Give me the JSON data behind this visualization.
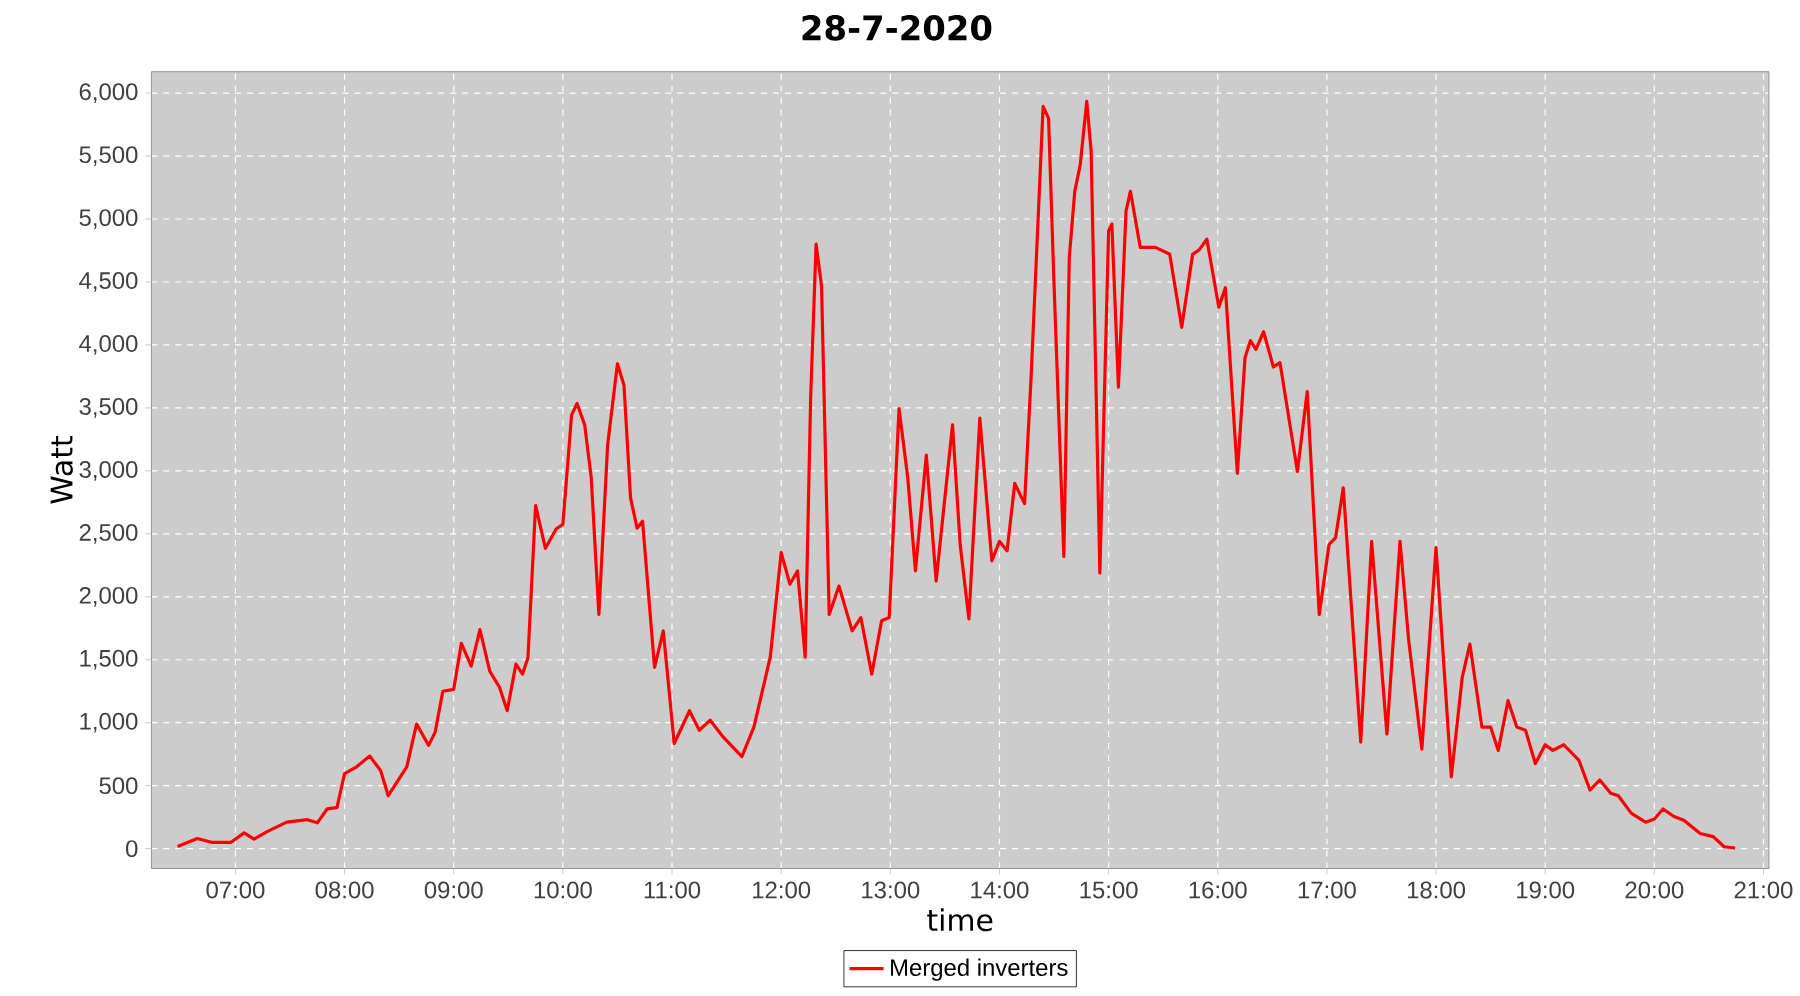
{
  "chart_data": {
    "type": "line",
    "title": "28-7-2020",
    "xlabel": "time",
    "ylabel": "Watt",
    "xlim": [
      6.23,
      21.05
    ],
    "ylim": [
      -158,
      6170
    ],
    "xticks": [
      {
        "value": 7,
        "label": "07:00"
      },
      {
        "value": 8,
        "label": "08:00"
      },
      {
        "value": 9,
        "label": "09:00"
      },
      {
        "value": 10,
        "label": "10:00"
      },
      {
        "value": 11,
        "label": "11:00"
      },
      {
        "value": 12,
        "label": "12:00"
      },
      {
        "value": 13,
        "label": "13:00"
      },
      {
        "value": 14,
        "label": "14:00"
      },
      {
        "value": 15,
        "label": "15:00"
      },
      {
        "value": 16,
        "label": "16:00"
      },
      {
        "value": 17,
        "label": "17:00"
      },
      {
        "value": 18,
        "label": "18:00"
      },
      {
        "value": 19,
        "label": "19:00"
      },
      {
        "value": 20,
        "label": "20:00"
      },
      {
        "value": 21,
        "label": "21:00"
      }
    ],
    "yticks": [
      0,
      500,
      {
        "value": 1000,
        "label": "1,000"
      },
      {
        "value": 1500,
        "label": "1,500"
      },
      {
        "value": 2000,
        "label": "2,000"
      },
      {
        "value": 2500,
        "label": "2,500"
      },
      {
        "value": 3000,
        "label": "3,000"
      },
      {
        "value": 3500,
        "label": "3,500"
      },
      {
        "value": 4000,
        "label": "4,000"
      },
      {
        "value": 4500,
        "label": "4,500"
      },
      {
        "value": 5000,
        "label": "5,000"
      },
      {
        "value": 5500,
        "label": "5,500"
      },
      {
        "value": 6000,
        "label": "6,000"
      }
    ],
    "grid": true,
    "legend": "bottom",
    "series": [
      {
        "name": "Merged inverters",
        "color": "#ff0000",
        "x": [
          6.47,
          6.65,
          6.78,
          6.96,
          7.08,
          7.17,
          7.29,
          7.47,
          7.66,
          7.75,
          7.84,
          7.93,
          8.0,
          8.11,
          8.23,
          8.33,
          8.4,
          8.57,
          8.66,
          8.77,
          8.83,
          8.9,
          9.0,
          9.07,
          9.16,
          9.24,
          9.33,
          9.42,
          9.49,
          9.57,
          9.63,
          9.68,
          9.75,
          9.84,
          9.94,
          10.0,
          10.08,
          10.13,
          10.2,
          10.26,
          10.33,
          10.41,
          10.5,
          10.56,
          10.62,
          10.68,
          10.73,
          10.84,
          10.92,
          11.02,
          11.16,
          11.25,
          11.35,
          11.47,
          11.64,
          11.75,
          11.9,
          12.0,
          12.08,
          12.15,
          12.22,
          12.27,
          12.32,
          12.37,
          12.44,
          12.53,
          12.65,
          12.73,
          12.83,
          12.92,
          12.99,
          13.08,
          13.16,
          13.23,
          13.33,
          13.42,
          13.57,
          13.64,
          13.72,
          13.82,
          13.93,
          14.0,
          14.07,
          14.14,
          14.23,
          14.29,
          14.4,
          14.45,
          14.5,
          14.59,
          14.64,
          14.69,
          14.74,
          14.8,
          14.84,
          14.92,
          15.0,
          15.03,
          15.09,
          15.16,
          15.2,
          15.29,
          15.43,
          15.56,
          15.67,
          15.77,
          15.83,
          15.9,
          16.01,
          16.07,
          16.18,
          16.25,
          16.3,
          16.35,
          16.42,
          16.51,
          16.57,
          16.73,
          16.82,
          16.93,
          17.02,
          17.08,
          17.15,
          17.31,
          17.41,
          17.55,
          17.67,
          17.75,
          17.87,
          18.0,
          18.14,
          18.24,
          18.31,
          18.42,
          18.5,
          18.57,
          18.66,
          18.74,
          18.82,
          18.91,
          19.0,
          19.07,
          19.17,
          19.31,
          19.41,
          19.5,
          19.6,
          19.67,
          19.79,
          19.92,
          20.0,
          20.08,
          20.18,
          20.27,
          20.42,
          20.54,
          20.64,
          20.74
        ],
        "values": [
          16,
          80,
          50,
          50,
          125,
          75,
          135,
          210,
          230,
          205,
          315,
          325,
          595,
          650,
          735,
          620,
          420,
          650,
          990,
          820,
          925,
          1250,
          1265,
          1630,
          1450,
          1740,
          1410,
          1280,
          1095,
          1465,
          1385,
          1515,
          2725,
          2385,
          2540,
          2575,
          3445,
          3535,
          3365,
          2945,
          1860,
          3205,
          3850,
          3680,
          2785,
          2545,
          2600,
          1440,
          1730,
          835,
          1095,
          940,
          1020,
          885,
          730,
          965,
          1520,
          2350,
          2100,
          2205,
          1520,
          3575,
          4800,
          4470,
          1860,
          2085,
          1730,
          1835,
          1385,
          1810,
          1835,
          3495,
          2945,
          2205,
          3125,
          2125,
          3365,
          2415,
          1825,
          3420,
          2285,
          2440,
          2365,
          2900,
          2740,
          3745,
          5895,
          5800,
          4485,
          2320,
          4695,
          5220,
          5430,
          5935,
          5540,
          2190,
          4905,
          4960,
          3665,
          5065,
          5220,
          4775,
          4775,
          4720,
          4140,
          4720,
          4755,
          4840,
          4300,
          4455,
          2980,
          3900,
          4035,
          3965,
          4105,
          3825,
          3860,
          2995,
          3630,
          1860,
          2415,
          2470,
          2865,
          845,
          2440,
          910,
          2440,
          1650,
          790,
          2390,
          570,
          1360,
          1625,
          965,
          965,
          780,
          1175,
          965,
          940,
          675,
          825,
          780,
          825,
          700,
          465,
          545,
          440,
          420,
          280,
          210,
          235,
          315,
          255,
          225,
          120,
          95,
          15,
          5
        ]
      }
    ]
  }
}
